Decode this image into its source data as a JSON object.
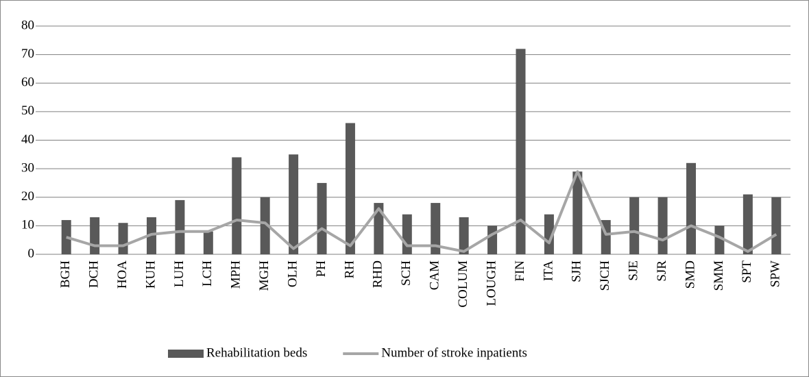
{
  "chart_data": {
    "type": "bar",
    "categories": [
      "BGH",
      "DCH",
      "HOA",
      "KUH",
      "LUH",
      "LCH",
      "MPH",
      "MGH",
      "OLH",
      "PH",
      "RH",
      "RHD",
      "SCH",
      "CAM",
      "COLUM",
      "LOUGH",
      "FIN",
      "ITA",
      "SJH",
      "SJCH",
      "SJE",
      "SJR",
      "SMD",
      "SMM",
      "SPT",
      "SPW"
    ],
    "series": [
      {
        "name": "Rehabilitation beds",
        "type": "bar",
        "color": "#595959",
        "values": [
          12,
          13,
          11,
          13,
          19,
          8,
          34,
          20,
          35,
          25,
          46,
          18,
          14,
          18,
          13,
          10,
          72,
          14,
          29,
          12,
          20,
          20,
          32,
          10,
          21,
          20
        ]
      },
      {
        "name": "Number of stroke inpatients",
        "type": "line",
        "color": "#a6a6a6",
        "values": [
          6,
          3,
          3,
          7,
          8,
          8,
          12,
          11,
          2,
          9,
          3,
          16,
          3,
          3,
          1,
          7,
          12,
          4,
          29,
          7,
          8,
          5,
          10,
          6,
          1,
          7
        ]
      }
    ],
    "ylim": [
      0,
      80
    ],
    "yticks": [
      0,
      10,
      20,
      30,
      40,
      50,
      60,
      70,
      80
    ],
    "grid": true,
    "legend": "bottom"
  }
}
